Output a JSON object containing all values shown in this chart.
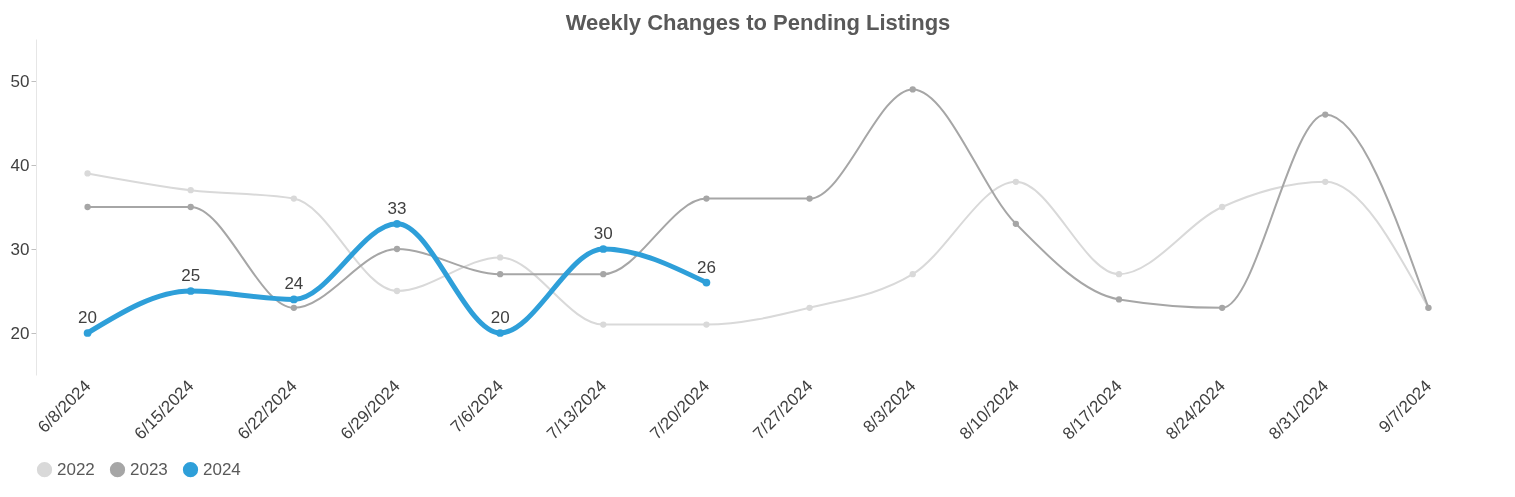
{
  "chart_data": {
    "type": "line",
    "title": "Weekly Changes to Pending Listings",
    "categories": [
      "6/8/2024",
      "6/15/2024",
      "6/22/2024",
      "6/29/2024",
      "7/6/2024",
      "7/13/2024",
      "7/20/2024",
      "7/27/2024",
      "8/3/2024",
      "8/10/2024",
      "8/17/2024",
      "8/24/2024",
      "8/31/2024",
      "9/7/2024"
    ],
    "series": [
      {
        "name": "2022",
        "color": "#d9d9d9",
        "values": [
          39,
          37,
          36,
          25,
          29,
          21,
          21,
          23,
          27,
          38,
          27,
          35,
          38,
          23
        ]
      },
      {
        "name": "2023",
        "color": "#a6a6a6",
        "values": [
          35,
          35,
          23,
          30,
          27,
          27,
          36,
          36,
          49,
          33,
          24,
          23,
          46,
          23
        ]
      },
      {
        "name": "2024",
        "color": "#2e9fd9",
        "values": [
          20,
          25,
          24,
          33,
          20,
          30,
          26,
          null,
          null,
          null,
          null,
          null,
          null,
          null
        ],
        "value_labels": [
          "20",
          "25",
          "24",
          "33",
          "20",
          "30",
          "26",
          null,
          null,
          null,
          null,
          null,
          null,
          null
        ]
      }
    ],
    "ylim": [
      15,
      55
    ],
    "yticks": [
      20,
      30,
      40,
      50
    ],
    "grid": false,
    "legend": "bottom left",
    "marker": "circle",
    "line_style": "solid"
  }
}
